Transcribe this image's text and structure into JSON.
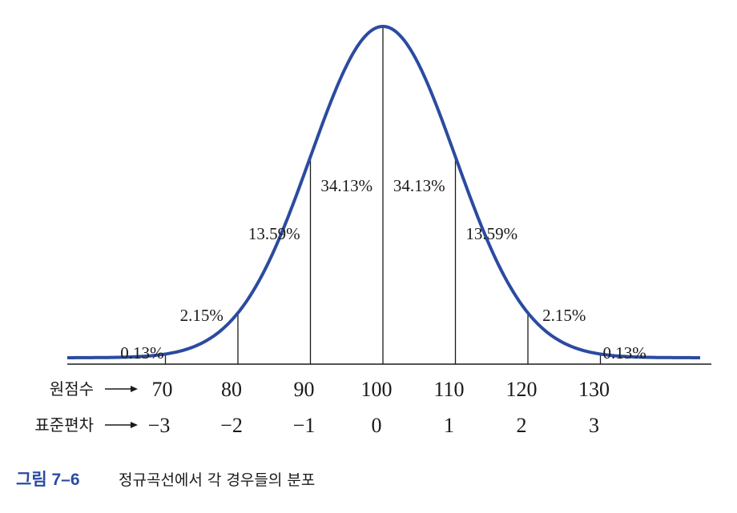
{
  "chart_data": {
    "type": "line",
    "distribution": "normal",
    "mean": 100,
    "sd": 10,
    "curve_color": "#2b4ba0",
    "axis_rows": [
      {
        "label": "원점수",
        "ticks": [
          "70",
          "80",
          "90",
          "100",
          "110",
          "120",
          "130"
        ]
      },
      {
        "label": "표준편차",
        "ticks": [
          "−3",
          "−2",
          "−1",
          "0",
          "1",
          "2",
          "3"
        ]
      }
    ],
    "dividers_at": [
      70,
      80,
      90,
      100,
      110,
      120,
      130
    ],
    "regions": [
      {
        "range": [
          null,
          70
        ],
        "label": "0.13%"
      },
      {
        "range": [
          70,
          80
        ],
        "label": "2.15%"
      },
      {
        "range": [
          80,
          90
        ],
        "label": "13.59%"
      },
      {
        "range": [
          90,
          100
        ],
        "label": "34.13%"
      },
      {
        "range": [
          100,
          110
        ],
        "label": "34.13%"
      },
      {
        "range": [
          110,
          120
        ],
        "label": "13.59%"
      },
      {
        "range": [
          120,
          130
        ],
        "label": "2.15%"
      },
      {
        "range": [
          130,
          null
        ],
        "label": "0.13%"
      }
    ],
    "arrow": "→"
  },
  "caption": {
    "label": "그림 7–6",
    "text": "정규곡선에서 각 경우들의 분포",
    "label_color": "#2b4ba0"
  }
}
